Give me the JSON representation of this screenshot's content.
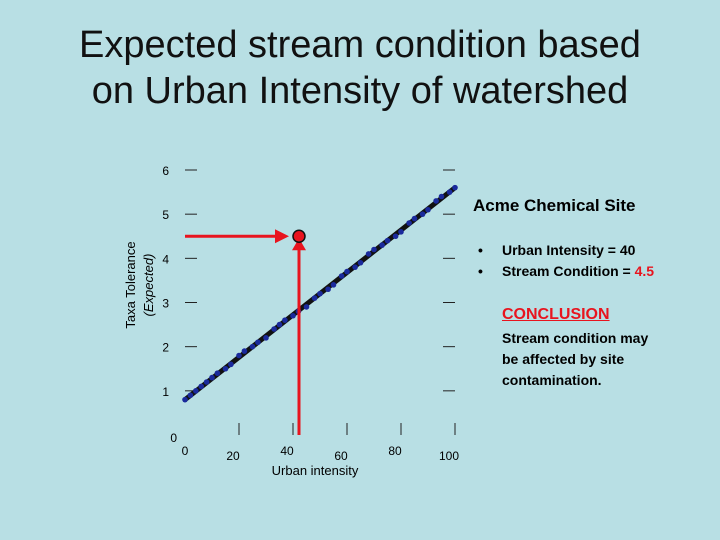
{
  "title_lines": [
    "Expected stream condition based",
    "on Urban Intensity of watershed"
  ],
  "site_panel": {
    "title": "Acme Chemical Site",
    "bullets": [
      {
        "dot": "•",
        "label": "Urban Intensity = 40"
      },
      {
        "dot": "•",
        "label": "Stream Condition = ",
        "value": "4.5"
      }
    ]
  },
  "conclusion": {
    "title": "CONCLUSION",
    "text": "Stream condition may be affected by site contamination."
  },
  "colors": {
    "background": "#b8dfe4",
    "trend_line": "#111111",
    "points": "#1a2a9c",
    "site_marker": "#e8141e",
    "arrows": "#e8141e"
  },
  "chart_data": {
    "type": "scatter",
    "xlabel": "Urban intensity",
    "ylabel": "Taxa Tolerance",
    "ylabel_sub": "(Expected)",
    "xlim": [
      0,
      100
    ],
    "ylim": [
      0,
      6
    ],
    "x_ticks": [
      0,
      20,
      40,
      60,
      80,
      100
    ],
    "y_ticks": [
      0,
      1,
      2,
      3,
      4,
      5,
      6
    ],
    "grid": false,
    "trend_line": {
      "x": [
        0,
        100
      ],
      "y": [
        0.8,
        5.6
      ]
    },
    "points": {
      "x": [
        0,
        2,
        4,
        6,
        8,
        10,
        12,
        15,
        17,
        20,
        22,
        25,
        27,
        30,
        33,
        35,
        37,
        40,
        42,
        45,
        48,
        50,
        53,
        55,
        58,
        60,
        63,
        65,
        68,
        70,
        73,
        75,
        78,
        80,
        83,
        85,
        88,
        90,
        93,
        95,
        98,
        100
      ],
      "y": [
        0.8,
        0.9,
        1.0,
        1.1,
        1.2,
        1.3,
        1.4,
        1.5,
        1.6,
        1.8,
        1.9,
        2.0,
        2.1,
        2.2,
        2.4,
        2.5,
        2.6,
        2.7,
        2.8,
        2.9,
        3.1,
        3.2,
        3.3,
        3.4,
        3.6,
        3.7,
        3.8,
        3.9,
        4.1,
        4.2,
        4.3,
        4.4,
        4.5,
        4.6,
        4.8,
        4.9,
        5.0,
        5.1,
        5.3,
        5.4,
        5.5,
        5.6
      ]
    },
    "site_point": {
      "x": 40,
      "y": 4.5
    }
  }
}
